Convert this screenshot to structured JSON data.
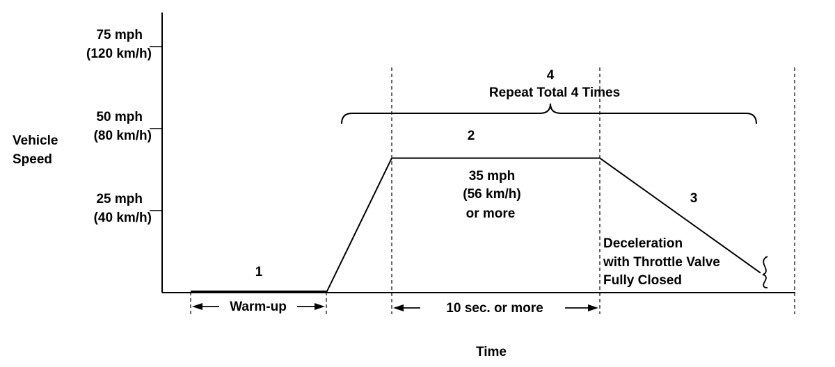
{
  "chart_data": {
    "type": "line",
    "ylabel": [
      "Vehicle",
      "Speed"
    ],
    "xlabel": "Time",
    "y_ticks": [
      {
        "value": 25,
        "label": "25 mph",
        "sublabel": "(40 km/h)"
      },
      {
        "value": 50,
        "label": "50 mph",
        "sublabel": "(80 km/h)"
      },
      {
        "value": 75,
        "label": "75 mph",
        "sublabel": "(120 km/h)"
      }
    ],
    "ylim": [
      0,
      85
    ],
    "speed_profile": [
      {
        "phase": "1",
        "speed_start": 0,
        "speed_end": 0
      },
      {
        "phase": "ramp",
        "speed_start": 0,
        "speed_end": 41
      },
      {
        "phase": "2",
        "speed_start": 41,
        "speed_end": 41
      },
      {
        "phase": "3",
        "speed_start": 41,
        "speed_end": 6
      }
    ],
    "annotations": {
      "step_1": "1",
      "step_2": "2",
      "step_3": "3",
      "step_4": "4",
      "repeat": "Repeat Total 4 Times",
      "speed_text": [
        "35 mph",
        "(56 km/h)",
        "or more"
      ],
      "decel_text": [
        "Deceleration",
        "with Throttle Valve",
        "Fully Closed"
      ],
      "warmup": "Warm-up",
      "hold_time": "10 sec. or more"
    }
  }
}
